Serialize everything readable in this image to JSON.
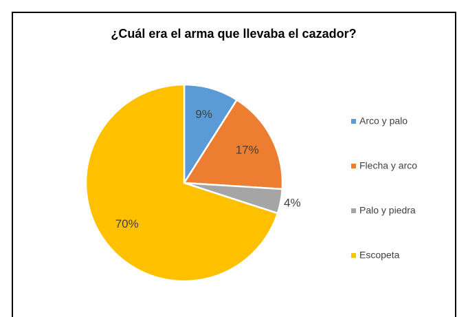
{
  "chart_data": {
    "type": "pie",
    "title": "¿Cuál era el arma que llevaba el cazador?",
    "categories": [
      "Arco y palo",
      "Flecha y arco",
      "Palo y piedra",
      "Escopeta"
    ],
    "values": [
      9,
      17,
      4,
      70
    ],
    "value_labels": [
      "9%",
      "17%",
      "4%",
      "70%"
    ],
    "colors": [
      "#5b9bd5",
      "#ed7d31",
      "#a5a5a5",
      "#ffc000"
    ],
    "legend": "right"
  }
}
